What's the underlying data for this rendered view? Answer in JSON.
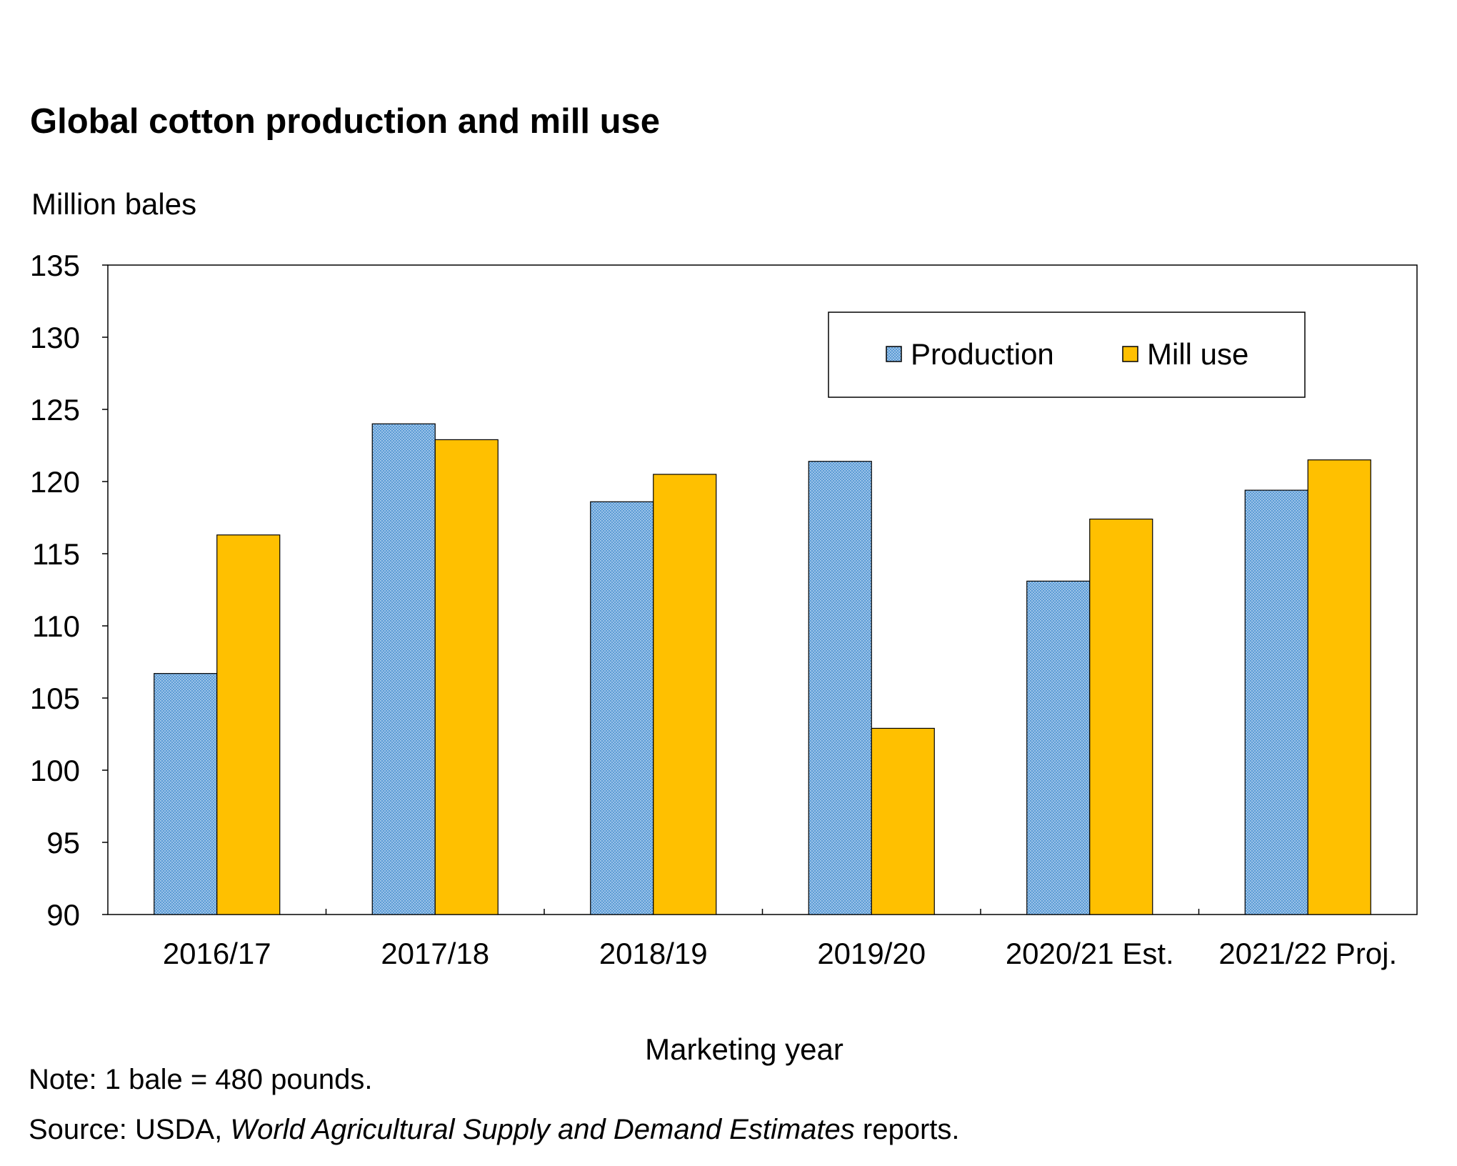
{
  "chart_data": {
    "type": "bar",
    "title": "Global cotton production and mill use",
    "ylabel": "Million bales",
    "xlabel": "Marketing year",
    "ylim": [
      90,
      135
    ],
    "ytick_step": 5,
    "yticks": [
      "90",
      "95",
      "100",
      "105",
      "110",
      "115",
      "120",
      "125",
      "130",
      "135"
    ],
    "categories": [
      "2016/17",
      "2017/18",
      "2018/19",
      "2019/20",
      "2020/21 Est.",
      "2021/22 Proj."
    ],
    "series": [
      {
        "name": "Production",
        "color": "#5b9bd5",
        "values": [
          106.7,
          124.0,
          118.6,
          121.4,
          113.1,
          119.4
        ]
      },
      {
        "name": "Mill use",
        "color": "#ffc000",
        "values": [
          116.3,
          122.9,
          120.5,
          102.9,
          117.4,
          121.5
        ]
      }
    ],
    "legend_position": "top-right",
    "grid": false
  },
  "footer": {
    "note": "Note: 1 bale = 480 pounds.",
    "source_prefix": "Source: USDA, ",
    "source_title": "World Agricultural Supply and Demand Estimates",
    "source_suffix": " reports."
  }
}
